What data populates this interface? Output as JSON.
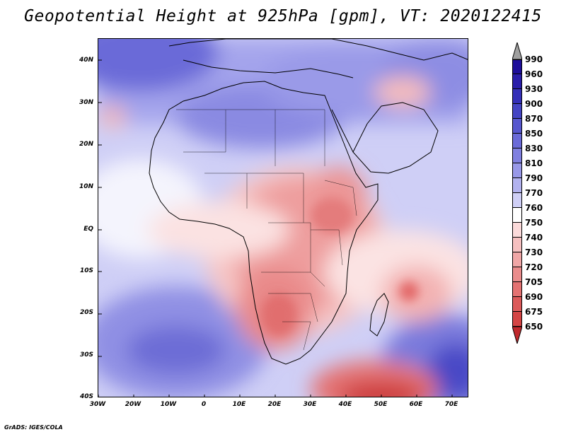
{
  "title": "Geopotential Height at 925hPa [gpm], VT: 2020122415",
  "footer": "GrADS: IGES/COLA",
  "map": {
    "lat_labels": [
      "40N",
      "30N",
      "20N",
      "10N",
      "EQ",
      "10S",
      "20S",
      "30S",
      "40S"
    ],
    "lon_labels": [
      "30W",
      "20W",
      "10W",
      "0",
      "10E",
      "20E",
      "30E",
      "40E",
      "50E",
      "60E",
      "70E"
    ],
    "lat_range": [
      -40,
      45
    ],
    "lon_range": [
      -30,
      75
    ]
  },
  "colorbar": {
    "top_arrow_color": "#a0a0a0",
    "bottom_arrow_color": "#c0282c",
    "levels": [
      {
        "label": "990",
        "color": "#1e0e9a"
      },
      {
        "label": "960",
        "color": "#2a1eaa"
      },
      {
        "label": "930",
        "color": "#3530b8"
      },
      {
        "label": "900",
        "color": "#4545c4"
      },
      {
        "label": "870",
        "color": "#5858cf"
      },
      {
        "label": "850",
        "color": "#6b6bd8"
      },
      {
        "label": "830",
        "color": "#8080e0"
      },
      {
        "label": "810",
        "color": "#9898e8"
      },
      {
        "label": "790",
        "color": "#b2b2ef"
      },
      {
        "label": "770",
        "color": "#cfcff6"
      },
      {
        "label": "760",
        "color": "#ffffff"
      },
      {
        "label": "750",
        "color": "#fbdada"
      },
      {
        "label": "740",
        "color": "#f6c0c0"
      },
      {
        "label": "730",
        "color": "#f0a6a6"
      },
      {
        "label": "720",
        "color": "#ea8c8c"
      },
      {
        "label": "705",
        "color": "#e47272"
      },
      {
        "label": "690",
        "color": "#dc5a5a"
      },
      {
        "label": "675",
        "color": "#d44444"
      },
      {
        "label": "650",
        "color": "#c0282c"
      }
    ]
  }
}
